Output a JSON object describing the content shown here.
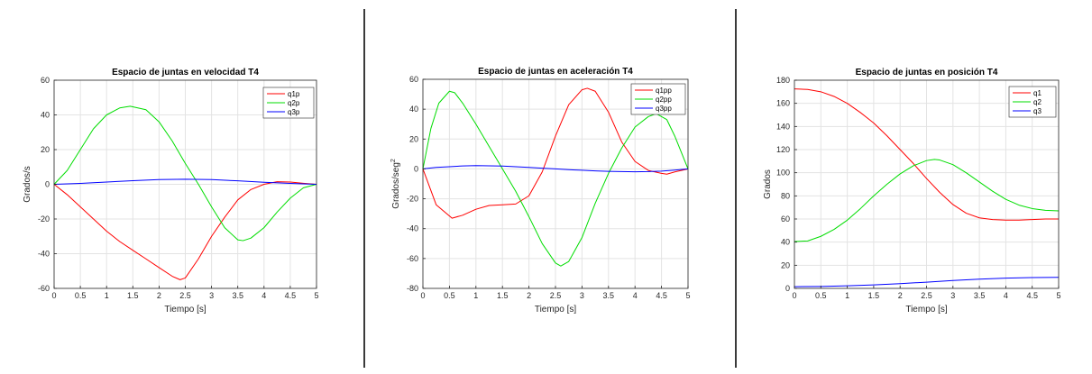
{
  "chart_data": [
    {
      "type": "line",
      "title": "Espacio de juntas en velocidad T4",
      "xlabel": "Tiempo [s]",
      "ylabel": "Grados/s",
      "xlim": [
        0,
        5
      ],
      "ylim": [
        -60,
        60
      ],
      "xticks": [
        0,
        0.5,
        1,
        1.5,
        2,
        2.5,
        3,
        3.5,
        4,
        4.5,
        5
      ],
      "yticks": [
        -60,
        -40,
        -20,
        0,
        20,
        40,
        60
      ],
      "xtick_labels": [
        "0",
        "0.5",
        "1",
        "1.5",
        "2",
        "2.5",
        "3",
        "3.5",
        "4",
        "4.5",
        "5"
      ],
      "ytick_labels": [
        "-60",
        "-40",
        "-20",
        "0",
        "20",
        "40",
        "60"
      ],
      "grid": true,
      "legend": "top-right",
      "series": [
        {
          "name": "q1p",
          "color": "#ff0000",
          "x": [
            0,
            0.25,
            0.5,
            0.75,
            1,
            1.25,
            1.5,
            1.75,
            2,
            2.25,
            2.4,
            2.5,
            2.75,
            3,
            3.25,
            3.5,
            3.75,
            4,
            4.25,
            4.5,
            4.75,
            5
          ],
          "y": [
            0,
            -6,
            -13,
            -20,
            -27,
            -33,
            -38,
            -43,
            -48,
            -53,
            -55,
            -54,
            -43,
            -30,
            -19,
            -9,
            -3,
            0,
            1.5,
            1.3,
            0.6,
            0
          ]
        },
        {
          "name": "q2p",
          "color": "#00dd00",
          "x": [
            0,
            0.25,
            0.5,
            0.75,
            1,
            1.25,
            1.45,
            1.75,
            2,
            2.25,
            2.5,
            2.75,
            3,
            3.25,
            3.5,
            3.6,
            3.75,
            4,
            4.25,
            4.5,
            4.75,
            5
          ],
          "y": [
            0,
            8,
            20,
            32,
            40,
            44,
            45,
            43,
            36,
            25,
            12,
            0,
            -13,
            -25,
            -32,
            -32.5,
            -31,
            -25,
            -16,
            -8,
            -2,
            0
          ]
        },
        {
          "name": "q3p",
          "color": "#0000ff",
          "x": [
            0,
            0.5,
            1,
            1.5,
            2,
            2.5,
            3,
            3.5,
            4,
            4.5,
            5
          ],
          "y": [
            0,
            0.5,
            1.3,
            2.1,
            2.7,
            2.9,
            2.7,
            2.0,
            1.2,
            0.5,
            0
          ]
        }
      ]
    },
    {
      "type": "line",
      "title": "Espacio de juntas en aceleración T4",
      "xlabel": "Tiempo [s]",
      "ylabel": "Grados/seg",
      "ylabel_sup": "2",
      "xlim": [
        0,
        5
      ],
      "ylim": [
        -80,
        60
      ],
      "xticks": [
        0,
        0.5,
        1,
        1.5,
        2,
        2.5,
        3,
        3.5,
        4,
        4.5,
        5
      ],
      "yticks": [
        -80,
        -60,
        -40,
        -20,
        0,
        20,
        40,
        60
      ],
      "xtick_labels": [
        "0",
        "0.5",
        "1",
        "1.5",
        "2",
        "2.5",
        "3",
        "3.5",
        "4",
        "4.5",
        "5"
      ],
      "ytick_labels": [
        "-80",
        "-60",
        "-40",
        "-20",
        "0",
        "20",
        "40",
        "60"
      ],
      "grid": true,
      "legend": "top-right",
      "series": [
        {
          "name": "q1pp",
          "color": "#ff0000",
          "x": [
            0,
            0.25,
            0.55,
            0.75,
            1,
            1.25,
            1.5,
            1.75,
            2,
            2.25,
            2.5,
            2.75,
            3,
            3.1,
            3.25,
            3.5,
            3.75,
            4,
            4.25,
            4.5,
            4.6,
            4.75,
            5
          ],
          "y": [
            0,
            -24,
            -33,
            -31,
            -27,
            -24.5,
            -24,
            -23.5,
            -18,
            -2,
            22,
            43,
            53,
            54,
            52,
            38,
            18,
            5,
            -1,
            -3,
            -3.5,
            -2,
            0
          ]
        },
        {
          "name": "q2pp",
          "color": "#00dd00",
          "x": [
            0,
            0.15,
            0.3,
            0.5,
            0.6,
            0.75,
            1,
            1.25,
            1.5,
            1.75,
            2,
            2.25,
            2.5,
            2.6,
            2.75,
            3,
            3.25,
            3.5,
            3.75,
            4,
            4.25,
            4.4,
            4.6,
            4.75,
            5
          ],
          "y": [
            0,
            27,
            44,
            52,
            51,
            44,
            30,
            15,
            0,
            -15,
            -32,
            -50,
            -63,
            -65,
            -62,
            -46,
            -23,
            -3,
            14,
            28,
            35,
            37,
            33,
            22,
            0
          ]
        },
        {
          "name": "q3pp",
          "color": "#0000ff",
          "x": [
            0,
            0.25,
            0.5,
            0.75,
            1,
            1.25,
            1.5,
            1.75,
            2,
            2.25,
            2.5,
            2.75,
            3,
            3.25,
            3.5,
            3.75,
            4,
            4.25,
            4.5,
            4.75,
            5
          ],
          "y": [
            0,
            1,
            1.5,
            2,
            2.2,
            2.1,
            1.9,
            1.5,
            1,
            0.5,
            0,
            -0.5,
            -0.9,
            -1.3,
            -1.6,
            -1.8,
            -1.9,
            -1.8,
            -1.5,
            -0.8,
            0
          ]
        }
      ]
    },
    {
      "type": "line",
      "title": "Espacio de juntas en posición T4",
      "xlabel": "Tiempo [s]",
      "ylabel": "Grados",
      "xlim": [
        0,
        5
      ],
      "ylim": [
        0,
        180
      ],
      "xticks": [
        0,
        0.5,
        1,
        1.5,
        2,
        2.5,
        3,
        3.5,
        4,
        4.5,
        5
      ],
      "yticks": [
        0,
        20,
        40,
        60,
        80,
        100,
        120,
        140,
        160,
        180
      ],
      "xtick_labels": [
        "0",
        "0.5",
        "1",
        "1.5",
        "2",
        "2.5",
        "3",
        "3.5",
        "4",
        "4.5",
        "5"
      ],
      "ytick_labels": [
        "0",
        "20",
        "40",
        "60",
        "80",
        "100",
        "120",
        "140",
        "160",
        "180"
      ],
      "grid": true,
      "legend": "top-right",
      "series": [
        {
          "name": "q1",
          "color": "#ff0000",
          "x": [
            0,
            0.25,
            0.5,
            0.75,
            1,
            1.25,
            1.5,
            1.75,
            2,
            2.25,
            2.5,
            2.75,
            3,
            3.25,
            3.5,
            3.75,
            4,
            4.25,
            4.5,
            4.75,
            5
          ],
          "y": [
            172.5,
            172,
            170,
            166,
            160,
            152,
            143,
            132,
            120,
            108,
            95,
            83,
            72.5,
            65,
            61,
            59.5,
            59,
            59,
            59.5,
            60,
            60
          ]
        },
        {
          "name": "q2",
          "color": "#00dd00",
          "x": [
            0,
            0.25,
            0.5,
            0.75,
            1,
            1.25,
            1.5,
            1.75,
            2,
            2.25,
            2.5,
            2.65,
            2.75,
            3,
            3.25,
            3.5,
            3.75,
            4,
            4.25,
            4.5,
            4.75,
            5
          ],
          "y": [
            40.5,
            41,
            45,
            51,
            59,
            69,
            80,
            90,
            99,
            106,
            110.5,
            111.5,
            111,
            107,
            100,
            92,
            84,
            77,
            72,
            69,
            67.5,
            67
          ]
        },
        {
          "name": "q3",
          "color": "#0000ff",
          "x": [
            0,
            0.5,
            1,
            1.5,
            2,
            2.5,
            3,
            3.5,
            4,
            4.5,
            5
          ],
          "y": [
            1.5,
            1.7,
            2.2,
            3,
            4.1,
            5.4,
            6.8,
            8,
            8.9,
            9.4,
            9.5
          ]
        }
      ]
    }
  ]
}
